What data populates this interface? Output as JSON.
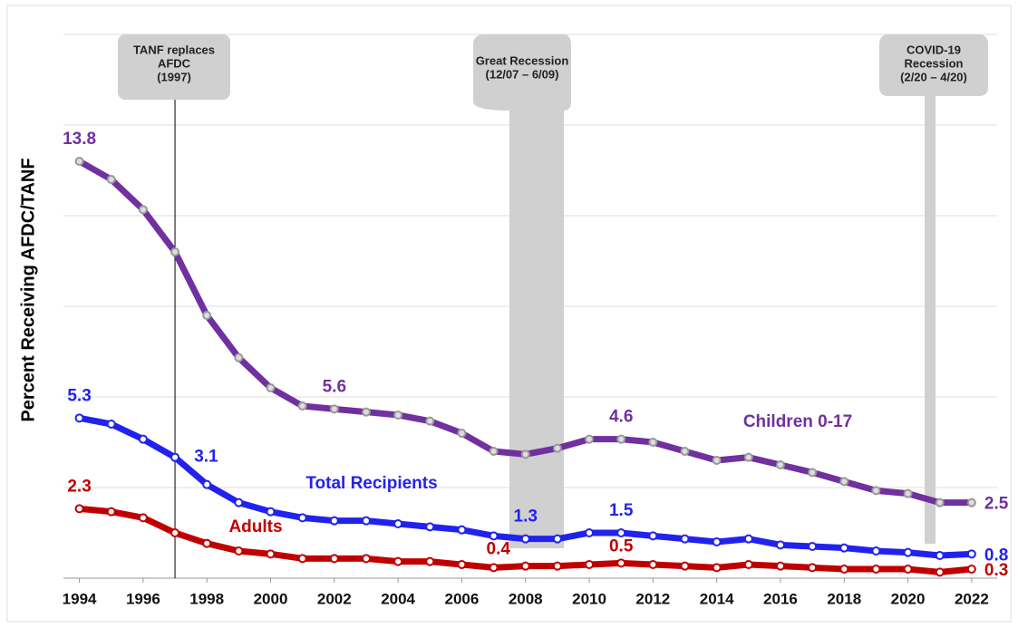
{
  "chart_data": {
    "type": "line",
    "y_label": "Percent Receiving AFDC/TANF",
    "x": [
      1994,
      1995,
      1996,
      1997,
      1998,
      1999,
      2000,
      2001,
      2002,
      2003,
      2004,
      2005,
      2006,
      2007,
      2008,
      2009,
      2010,
      2011,
      2012,
      2013,
      2014,
      2015,
      2016,
      2017,
      2018,
      2019,
      2020,
      2021,
      2022
    ],
    "xlim": [
      1993.5,
      2022.8
    ],
    "xticks": [
      1994,
      1996,
      1998,
      2000,
      2002,
      2004,
      2006,
      2008,
      2010,
      2012,
      2014,
      2016,
      2018,
      2020,
      2022
    ],
    "ylim": [
      0,
      18
    ],
    "yticks": [
      0,
      3,
      6,
      9,
      12,
      15,
      18
    ],
    "grid": true,
    "series": [
      {
        "name": "Children 0-17",
        "color": "#7030a0",
        "values": [
          13.8,
          13.2,
          12.2,
          10.8,
          8.7,
          7.3,
          6.3,
          5.7,
          5.6,
          5.5,
          5.4,
          5.2,
          4.8,
          4.2,
          4.1,
          4.3,
          4.6,
          4.6,
          4.5,
          4.2,
          3.9,
          4.0,
          3.75,
          3.5,
          3.2,
          2.9,
          2.8,
          2.5,
          2.5
        ]
      },
      {
        "name": "Total Recipients",
        "color": "#2222ee",
        "values": [
          5.3,
          5.1,
          4.6,
          4.0,
          3.1,
          2.5,
          2.2,
          2.0,
          1.9,
          1.9,
          1.8,
          1.7,
          1.6,
          1.4,
          1.3,
          1.3,
          1.5,
          1.5,
          1.4,
          1.3,
          1.2,
          1.3,
          1.1,
          1.05,
          1.0,
          0.9,
          0.85,
          0.75,
          0.8
        ]
      },
      {
        "name": "Adults",
        "color": "#c00000",
        "values": [
          2.3,
          2.2,
          2.0,
          1.5,
          1.15,
          0.9,
          0.8,
          0.65,
          0.65,
          0.65,
          0.55,
          0.55,
          0.45,
          0.35,
          0.4,
          0.4,
          0.45,
          0.5,
          0.45,
          0.4,
          0.35,
          0.45,
          0.4,
          0.35,
          0.3,
          0.3,
          0.3,
          0.2,
          0.3
        ]
      }
    ],
    "annotations": [
      {
        "lines": [
          "TANF replaces",
          "AFDC",
          "(1997)"
        ]
      },
      {
        "lines": [
          "Great Recession",
          "(12/07 – 6/09)"
        ]
      },
      {
        "lines": [
          "COVID-19",
          "Recession",
          "(2/20 – 4/20)"
        ]
      }
    ]
  }
}
